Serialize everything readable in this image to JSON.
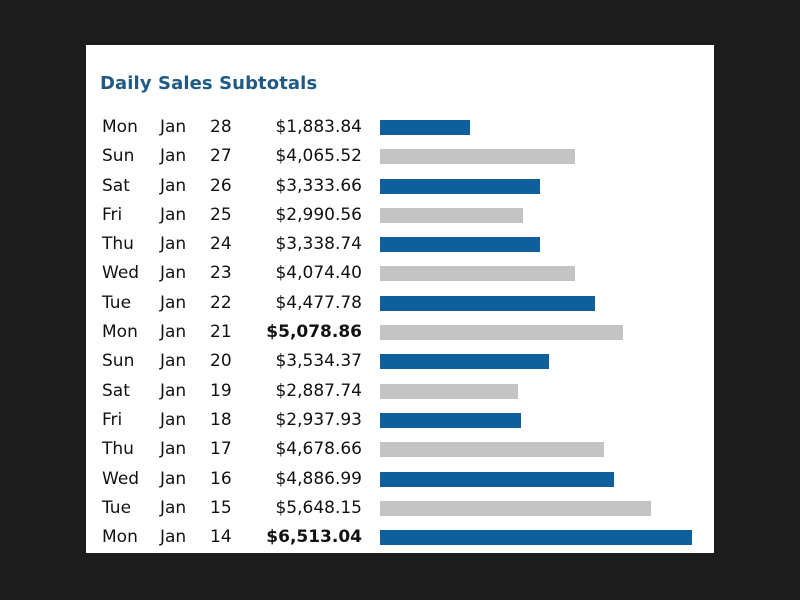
{
  "chart_data": {
    "type": "bar",
    "orientation": "horizontal",
    "title": "Daily Sales Subtotals",
    "xlabel": "",
    "ylabel": "",
    "xlim": [
      0,
      6513.04
    ],
    "colors": {
      "primary": "#0f5f9c",
      "secondary": "#c3c3c3",
      "title": "#1f5a86"
    },
    "rows": [
      {
        "day": "Mon",
        "month": "Jan",
        "date": "28",
        "amount_label": "$1,883.84",
        "value": 1883.84,
        "bold": false
      },
      {
        "day": "Sun",
        "month": "Jan",
        "date": "27",
        "amount_label": "$4,065.52",
        "value": 4065.52,
        "bold": false
      },
      {
        "day": "Sat",
        "month": "Jan",
        "date": "26",
        "amount_label": "$3,333.66",
        "value": 3333.66,
        "bold": false
      },
      {
        "day": "Fri",
        "month": "Jan",
        "date": "25",
        "amount_label": "$2,990.56",
        "value": 2990.56,
        "bold": false
      },
      {
        "day": "Thu",
        "month": "Jan",
        "date": "24",
        "amount_label": "$3,338.74",
        "value": 3338.74,
        "bold": false
      },
      {
        "day": "Wed",
        "month": "Jan",
        "date": "23",
        "amount_label": "$4,074.40",
        "value": 4074.4,
        "bold": false
      },
      {
        "day": "Tue",
        "month": "Jan",
        "date": "22",
        "amount_label": "$4,477.78",
        "value": 4477.78,
        "bold": false
      },
      {
        "day": "Mon",
        "month": "Jan",
        "date": "21",
        "amount_label": "$5,078.86",
        "value": 5078.86,
        "bold": true
      },
      {
        "day": "Sun",
        "month": "Jan",
        "date": "20",
        "amount_label": "$3,534.37",
        "value": 3534.37,
        "bold": false
      },
      {
        "day": "Sat",
        "month": "Jan",
        "date": "19",
        "amount_label": "$2,887.74",
        "value": 2887.74,
        "bold": false
      },
      {
        "day": "Fri",
        "month": "Jan",
        "date": "18",
        "amount_label": "$2,937.93",
        "value": 2937.93,
        "bold": false
      },
      {
        "day": "Thu",
        "month": "Jan",
        "date": "17",
        "amount_label": "$4,678.66",
        "value": 4678.66,
        "bold": false
      },
      {
        "day": "Wed",
        "month": "Jan",
        "date": "16",
        "amount_label": "$4,886.99",
        "value": 4886.99,
        "bold": false
      },
      {
        "day": "Tue",
        "month": "Jan",
        "date": "15",
        "amount_label": "$5,648.15",
        "value": 5648.15,
        "bold": false
      },
      {
        "day": "Mon",
        "month": "Jan",
        "date": "14",
        "amount_label": "$6,513.04",
        "value": 6513.04,
        "bold": true
      }
    ]
  }
}
